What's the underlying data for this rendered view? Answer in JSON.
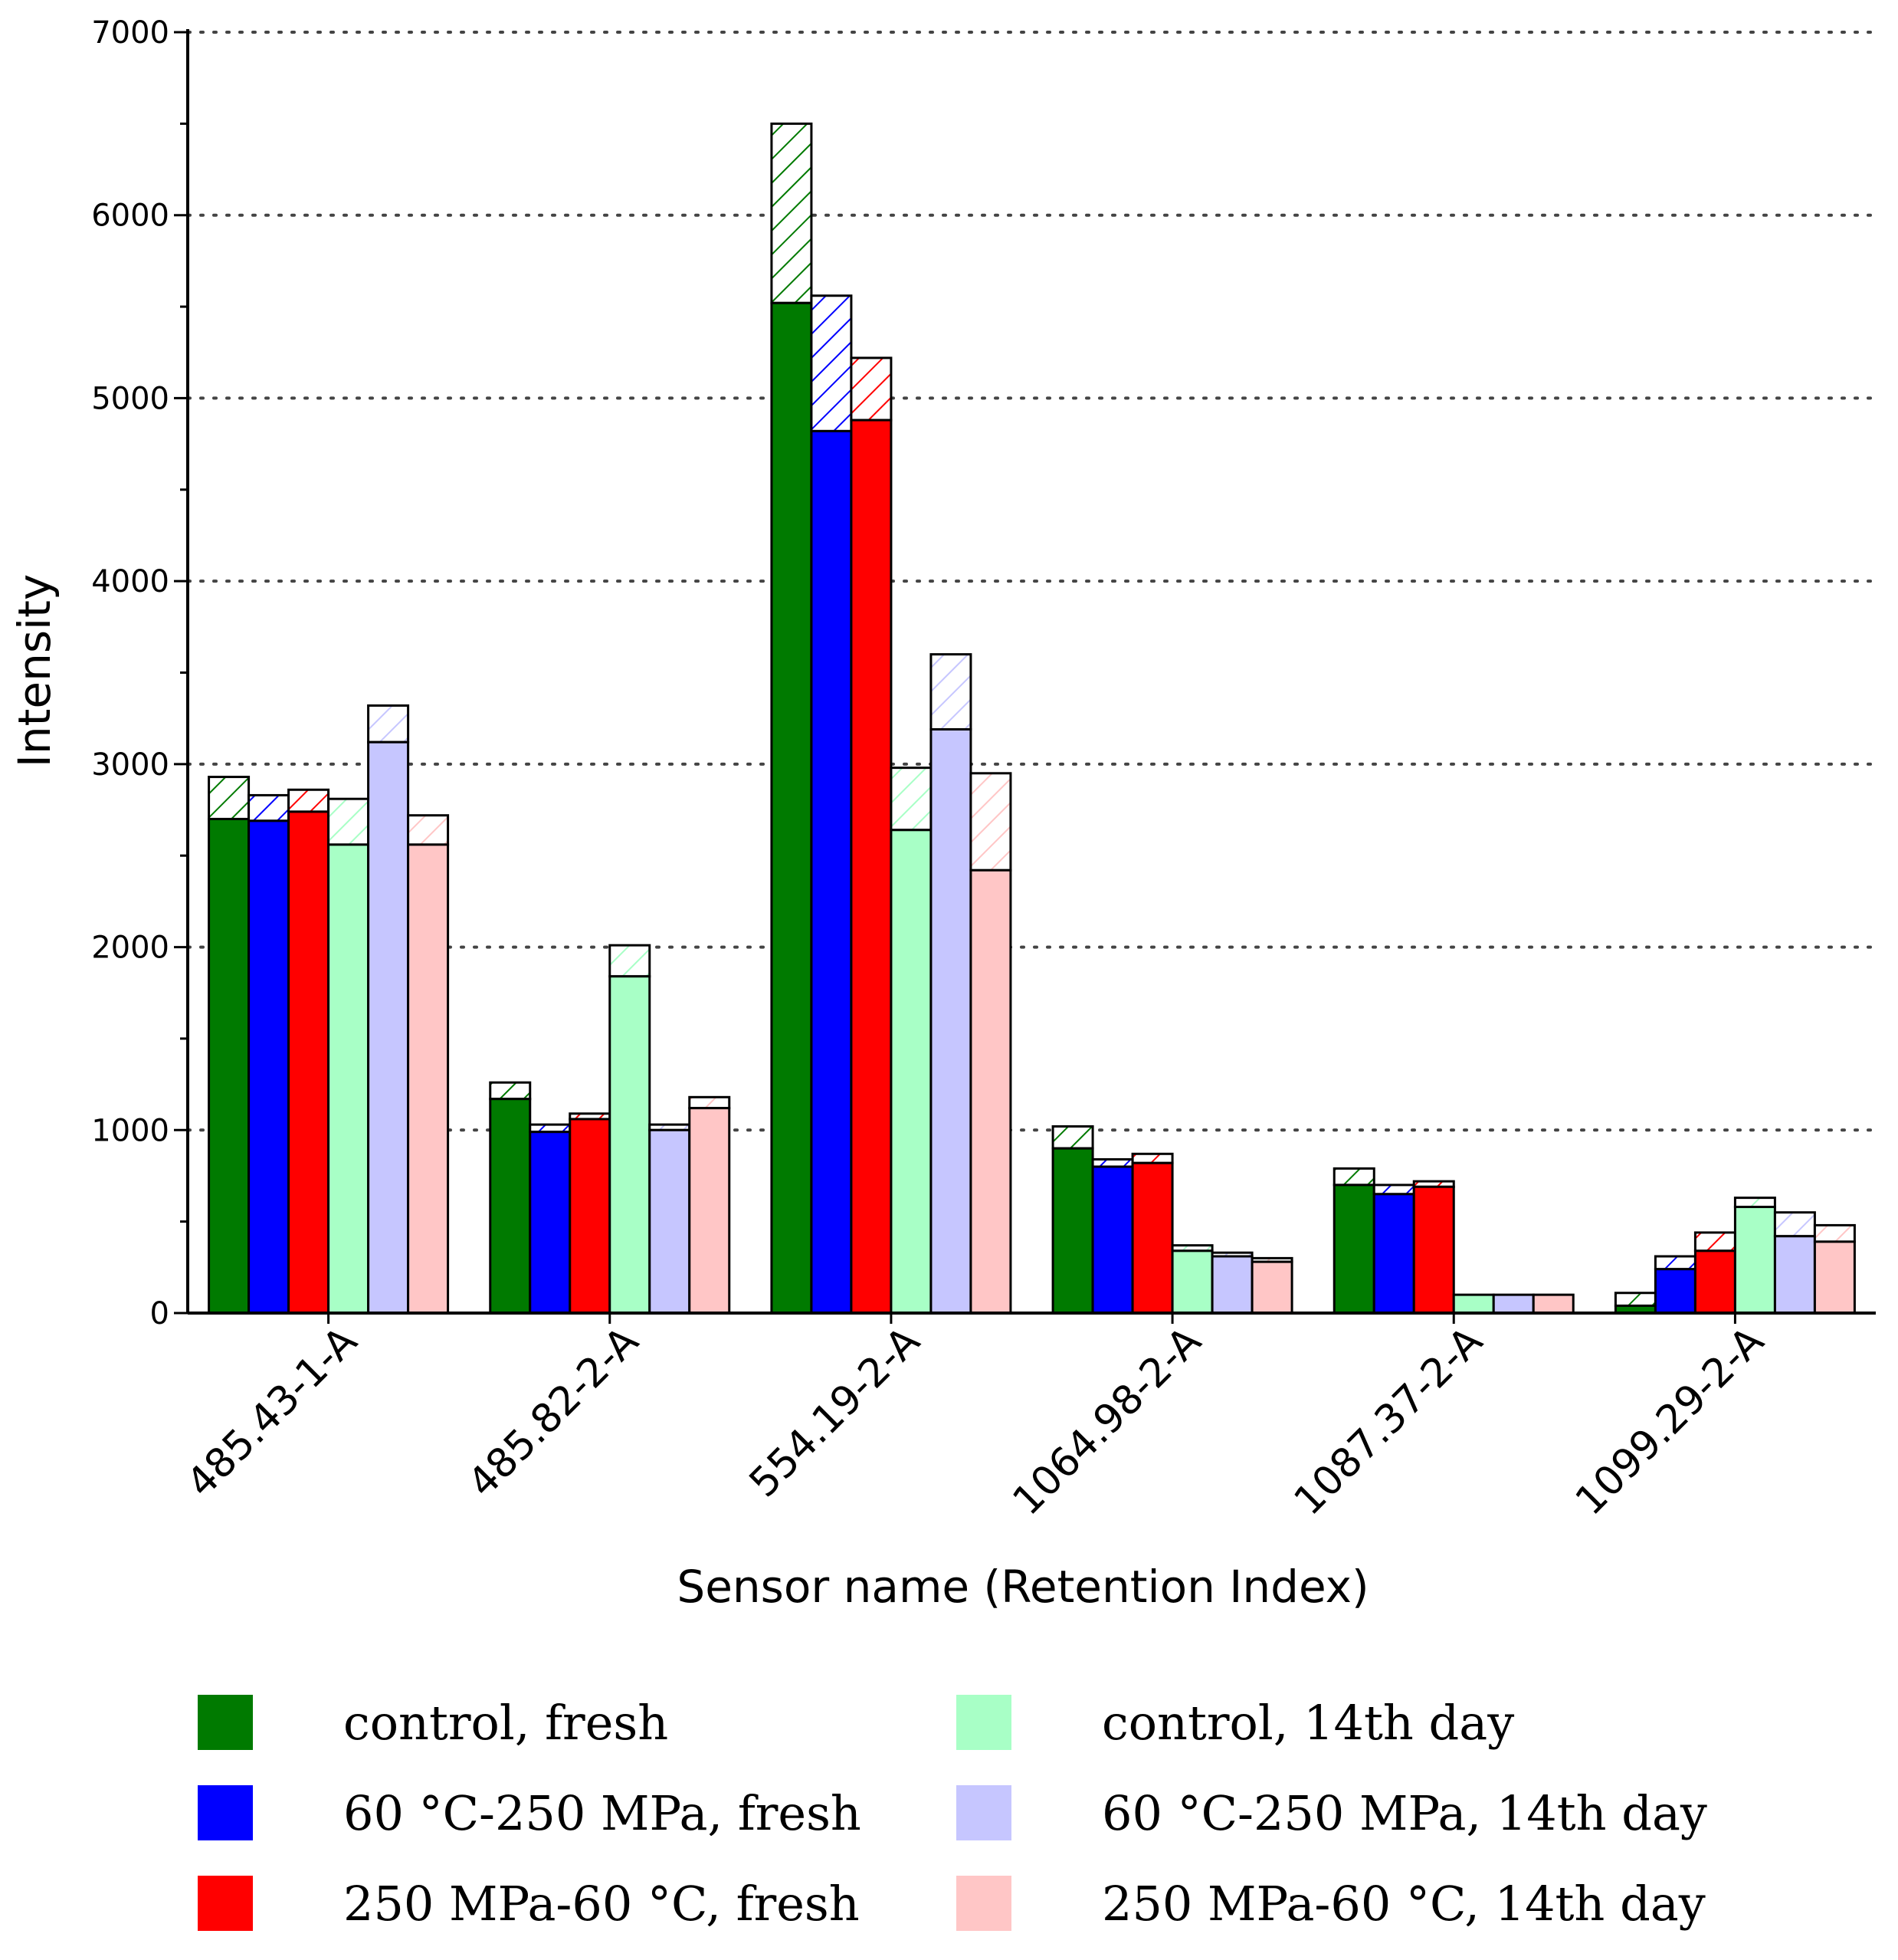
{
  "chart_data": {
    "type": "bar",
    "ylabel": "Intensity",
    "xlabel": "Sensor name (Retention Index)",
    "ylim": [
      0,
      7000
    ],
    "yticks": [
      0,
      1000,
      2000,
      3000,
      4000,
      5000,
      6000,
      7000
    ],
    "grid": "horizontal dotted",
    "categories": [
      "485.43-1-A",
      "485.82-2-A",
      "554.19-2-A",
      "1064.98-2-A",
      "1087.37-2-A",
      "1099.29-2-A"
    ],
    "series": [
      {
        "name": "control, fresh",
        "color": "#007a00",
        "values": [
          2700,
          1170,
          5520,
          900,
          700,
          40
        ],
        "error": [
          230,
          90,
          980,
          120,
          90,
          70
        ]
      },
      {
        "name": "60 °C-250 MPa, fresh",
        "color": "#0000ff",
        "values": [
          2690,
          990,
          4820,
          800,
          650,
          240
        ],
        "error": [
          140,
          40,
          740,
          40,
          50,
          70
        ]
      },
      {
        "name": "250 MPa-60 °C, fresh",
        "color": "#ff0000",
        "values": [
          2740,
          1060,
          4880,
          820,
          690,
          340
        ],
        "error": [
          120,
          30,
          340,
          50,
          30,
          100
        ]
      },
      {
        "name": "control, 14th day",
        "color": "#a8ffc6",
        "values": [
          2560,
          1840,
          2640,
          340,
          100,
          580
        ],
        "error": [
          250,
          170,
          340,
          30,
          0,
          50
        ]
      },
      {
        "name": "60 °C-250 MPa, 14th day",
        "color": "#c6c6ff",
        "values": [
          3120,
          1000,
          3190,
          310,
          100,
          420
        ],
        "error": [
          200,
          30,
          410,
          20,
          0,
          130
        ]
      },
      {
        "name": "250 MPa-60 °C, 14th day",
        "color": "#ffc6c6",
        "values": [
          2560,
          1120,
          2420,
          280,
          100,
          390
        ],
        "error": [
          160,
          60,
          530,
          20,
          0,
          90
        ]
      }
    ]
  },
  "legend": {
    "items": [
      {
        "label": "control, fresh",
        "color": "#007a00"
      },
      {
        "label": "60 °C-250 MPa, fresh",
        "color": "#0000ff"
      },
      {
        "label": "250 MPa-60 °C, fresh",
        "color": "#ff0000"
      },
      {
        "label": "control, 14th day",
        "color": "#a8ffc6"
      },
      {
        "label": "60 °C-250 MPa, 14th day",
        "color": "#c6c6ff"
      },
      {
        "label": "250 MPa-60 °C, 14th day",
        "color": "#ffc6c6"
      }
    ]
  }
}
